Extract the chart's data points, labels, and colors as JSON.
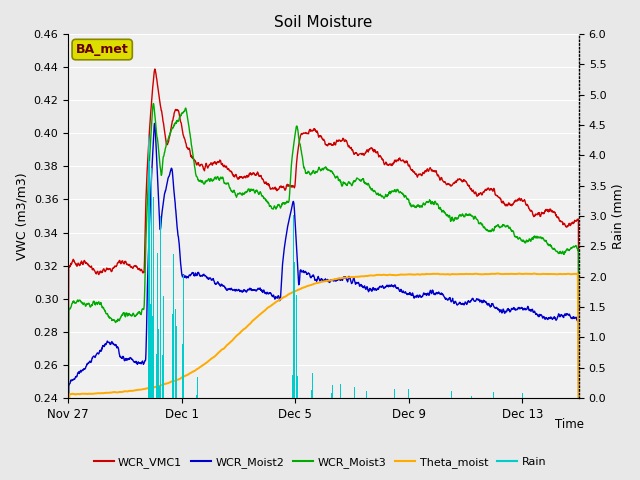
{
  "title": "Soil Moisture",
  "xlabel": "Time",
  "ylabel_left": "VWC (m3/m3)",
  "ylabel_right": "Rain (mm)",
  "ylim_left": [
    0.24,
    0.46
  ],
  "ylim_right": [
    0.0,
    6.0
  ],
  "yticks_left": [
    0.24,
    0.26,
    0.28,
    0.3,
    0.32,
    0.34,
    0.36,
    0.38,
    0.4,
    0.42,
    0.44,
    0.46
  ],
  "yticks_right": [
    0.0,
    0.5,
    1.0,
    1.5,
    2.0,
    2.5,
    3.0,
    3.5,
    4.0,
    4.5,
    5.0,
    5.5,
    6.0
  ],
  "xtick_labels": [
    "Nov 27",
    "Dec 1",
    "Dec 5",
    "Dec 9",
    "Dec 13"
  ],
  "xtick_positions": [
    0,
    4,
    8,
    12,
    16
  ],
  "colors": {
    "WCR_VMC1": "#cc0000",
    "WCR_Moist2": "#0000cc",
    "WCR_Moist3": "#00aa00",
    "Theta_moist": "#ffaa00",
    "Rain": "#00cccc"
  },
  "bg_color": "#e8e8e8",
  "plot_bg": "#f0f0f0",
  "label_box_facecolor": "#dddd00",
  "label_box_edgecolor": "#888800",
  "label_box_text": "BA_met",
  "label_text_color": "#660000"
}
